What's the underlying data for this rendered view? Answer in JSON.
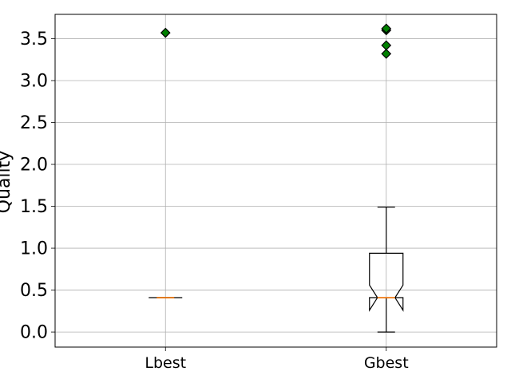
{
  "chart_data": {
    "type": "boxplot",
    "title": "",
    "xlabel": "",
    "ylabel": "Quality",
    "ylim": [
      -0.18,
      3.79
    ],
    "yticks": [
      0.0,
      0.5,
      1.0,
      1.5,
      2.0,
      2.5,
      3.0,
      3.5
    ],
    "ytick_labels": [
      "0.0",
      "0.5",
      "1.0",
      "1.5",
      "2.0",
      "2.5",
      "3.0",
      "3.5"
    ],
    "grid": true,
    "notched": true,
    "categories": [
      "Lbest",
      "Gbest"
    ],
    "boxes": [
      {
        "name": "Lbest",
        "whisker_low": 0.41,
        "q1": 0.41,
        "median": 0.41,
        "q3": 0.41,
        "whisker_high": 0.41,
        "notch_low": 0.41,
        "notch_high": 0.41,
        "outliers": [
          3.57
        ]
      },
      {
        "name": "Gbest",
        "whisker_low": 0.0,
        "q1": 0.41,
        "median": 0.41,
        "q3": 0.94,
        "whisker_high": 1.49,
        "notch_low": 0.26,
        "notch_high": 0.56,
        "outliers": [
          3.32,
          3.42,
          3.6,
          3.62
        ]
      }
    ],
    "colors": {
      "box": "#000000",
      "median": "#ff7f0e",
      "outlier_fill": "#008000",
      "grid": "#b0b0b0"
    }
  }
}
